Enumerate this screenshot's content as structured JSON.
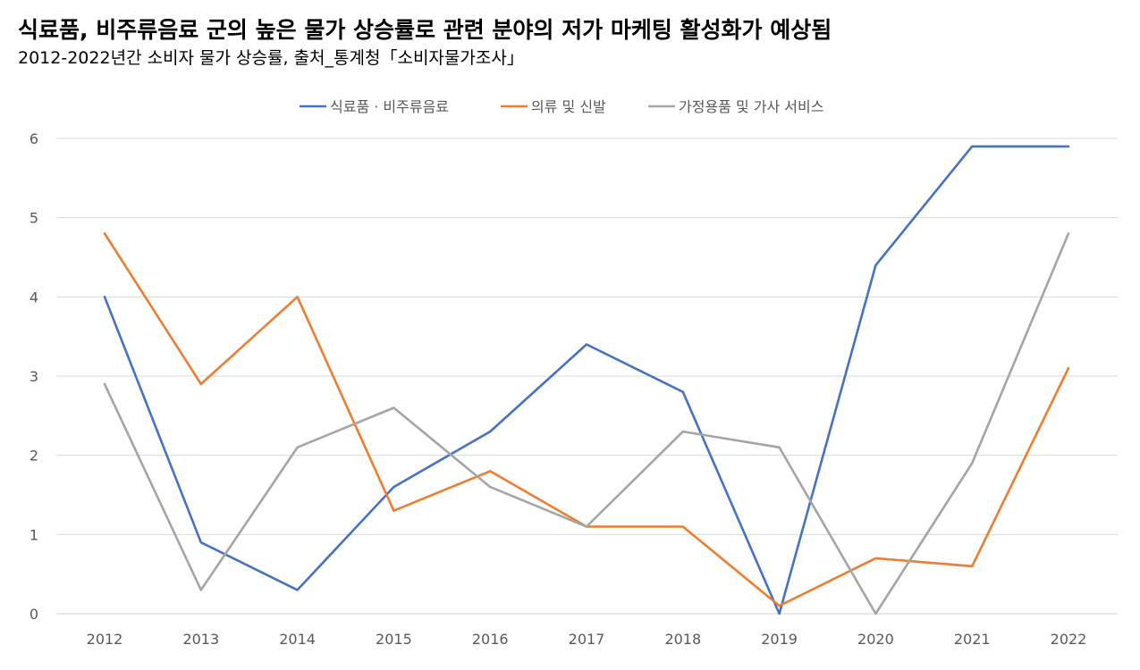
{
  "chart_data": {
    "type": "line",
    "title": "식료품, 비주류음료 군의 높은 물가 상승률로 관련 분야의 저가 마케팅 활성화가 예상됨",
    "subtitle": "2012-2022년간 소비자 물가 상승률, 출처_통계청「소비자물가조사」",
    "xlabel": "",
    "ylabel": "",
    "x": [
      "2012",
      "2013",
      "2014",
      "2015",
      "2016",
      "2017",
      "2018",
      "2019",
      "2020",
      "2021",
      "2022"
    ],
    "ylim": [
      0,
      6
    ],
    "yticks": [
      "0",
      "1",
      "2",
      "3",
      "4",
      "5",
      "6"
    ],
    "grid": true,
    "legend_position": "top-center",
    "series": [
      {
        "name": "식료품 · 비주류음료",
        "color": "#4472C4",
        "values": [
          4.0,
          0.9,
          0.3,
          1.6,
          2.3,
          3.4,
          2.8,
          0.0,
          4.4,
          5.9,
          5.9
        ]
      },
      {
        "name": "의류 및 신발",
        "color": "#ED7D31",
        "values": [
          4.8,
          2.9,
          4.0,
          1.3,
          1.8,
          1.1,
          1.1,
          0.1,
          0.7,
          0.6,
          3.1
        ]
      },
      {
        "name": "가정용품 및 가사 서비스",
        "color": "#A5A5A5",
        "values": [
          2.9,
          0.3,
          2.1,
          2.6,
          1.6,
          1.1,
          2.3,
          2.1,
          0.0,
          1.9,
          4.8
        ]
      }
    ]
  }
}
